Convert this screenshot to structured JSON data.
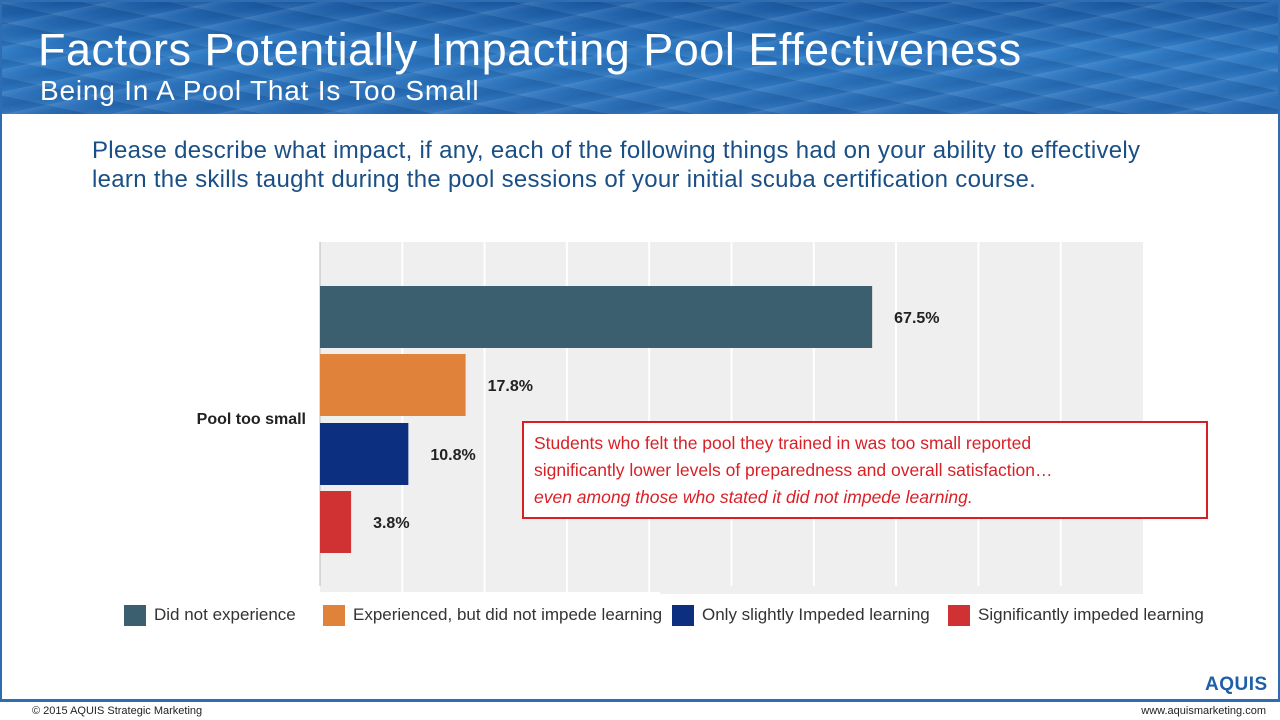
{
  "header": {
    "title": "Factors Potentially Impacting Pool Effectiveness",
    "subtitle": "Being In A Pool That Is Too Small"
  },
  "question": "Please describe what impact, if any, each of the following things had on your ability to effectively learn the skills taught during the pool sessions of your initial scuba certification course.",
  "chart_data": {
    "type": "bar",
    "orientation": "horizontal",
    "categories": [
      "Pool too small"
    ],
    "series": [
      {
        "name": "Did not experience",
        "values": [
          67.5
        ],
        "color": "#3b5f6e",
        "label": "67.5%"
      },
      {
        "name": "Experienced, but did not impede learning",
        "values": [
          17.8
        ],
        "color": "#e0823a",
        "label": "17.8%"
      },
      {
        "name": "Only slightly Impeded learning",
        "values": [
          10.8
        ],
        "color": "#0d2f80",
        "label": "10.8%"
      },
      {
        "name": "Significantly impeded learning",
        "values": [
          3.8
        ],
        "color": "#d03234",
        "label": "3.8%"
      }
    ],
    "xlim": [
      0,
      100
    ],
    "grid": true,
    "legend": "bottom"
  },
  "callout": {
    "line1": "Students who felt the pool they trained in was too small reported",
    "line2": "significantly lower levels of preparedness and overall satisfaction…",
    "line3": "even among those who stated it did not impede learning."
  },
  "footer": {
    "copyright": "© 2015 AQUIS Strategic Marketing",
    "url": "www.aquismarketing.com",
    "logo": "AQUIS"
  }
}
